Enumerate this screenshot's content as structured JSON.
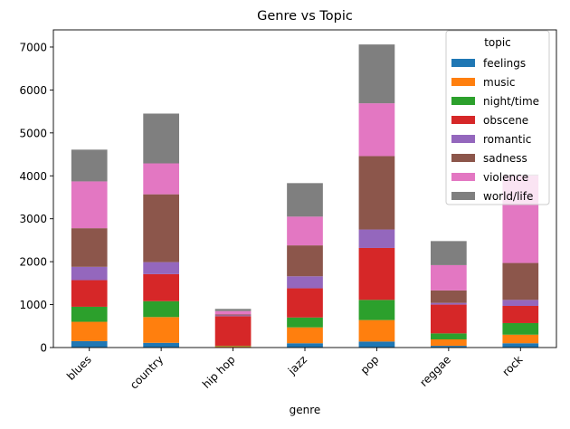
{
  "chart_data": {
    "type": "bar",
    "stacked": true,
    "title": "Genre vs Topic",
    "xlabel": "genre",
    "ylabel": "",
    "ylim": [
      0,
      7400
    ],
    "yticks": [
      0,
      1000,
      2000,
      3000,
      4000,
      5000,
      6000,
      7000
    ],
    "categories": [
      "blues",
      "country",
      "hip hop",
      "jazz",
      "pop",
      "reggae",
      "rock"
    ],
    "grid": false,
    "legend": {
      "title": "topic",
      "placement": "top-right"
    },
    "series": [
      {
        "name": "feelings",
        "color": "#1f77b4",
        "values": [
          150,
          110,
          10,
          100,
          140,
          40,
          100
        ]
      },
      {
        "name": "music",
        "color": "#ff7f0e",
        "values": [
          450,
          600,
          20,
          370,
          500,
          150,
          200
        ]
      },
      {
        "name": "night/time",
        "color": "#2ca02c",
        "values": [
          350,
          370,
          10,
          230,
          470,
          140,
          270
        ]
      },
      {
        "name": "obscene",
        "color": "#d62728",
        "values": [
          620,
          630,
          690,
          680,
          1210,
          670,
          400
        ]
      },
      {
        "name": "romantic",
        "color": "#9467bd",
        "values": [
          310,
          280,
          20,
          280,
          430,
          40,
          140
        ]
      },
      {
        "name": "sadness",
        "color": "#8c564b",
        "values": [
          900,
          1580,
          20,
          720,
          1710,
          290,
          860
        ]
      },
      {
        "name": "violence",
        "color": "#e377c2",
        "values": [
          1090,
          720,
          80,
          670,
          1230,
          590,
          2040
        ]
      },
      {
        "name": "world/life",
        "color": "#7f7f7f",
        "values": [
          740,
          1160,
          50,
          780,
          1370,
          560,
          20
        ]
      }
    ]
  }
}
